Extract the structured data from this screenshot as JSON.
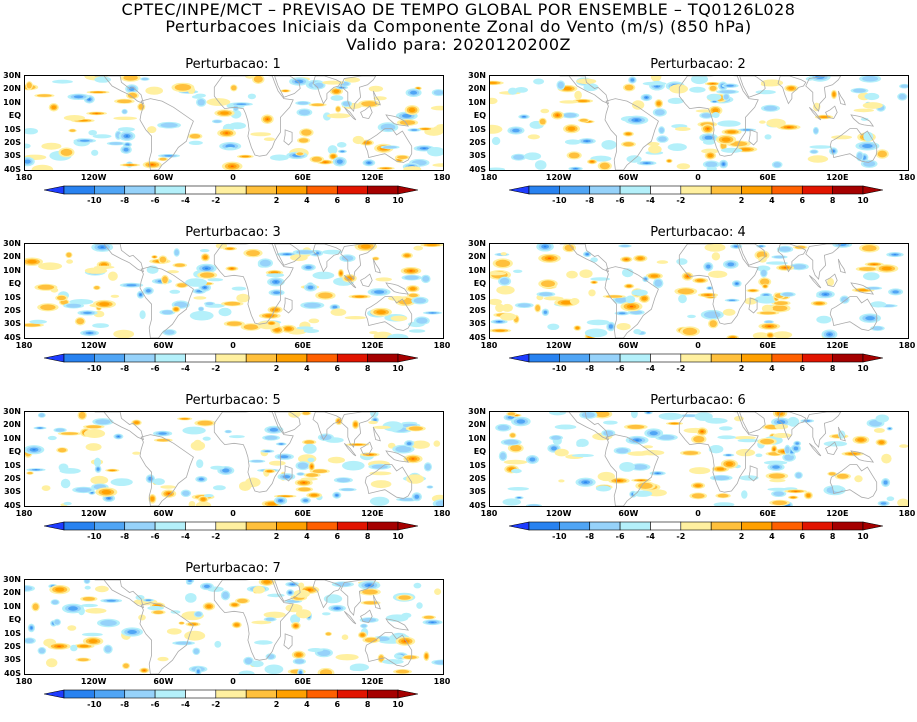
{
  "header": {
    "line1": "CPTEC/INPE/MCT – PREVISAO DE TEMPO GLOBAL POR ENSEMBLE – TQ0126L028",
    "line2": "Perturbacoes Iniciais da Componente Zonal do Vento (m/s) (850 hPa)",
    "line3": "Valido para: 2020120200Z"
  },
  "panels": [
    {
      "title": "Perturbacao: 1"
    },
    {
      "title": "Perturbacao: 2"
    },
    {
      "title": "Perturbacao: 3"
    },
    {
      "title": "Perturbacao: 4"
    },
    {
      "title": "Perturbacao: 5"
    },
    {
      "title": "Perturbacao: 6"
    },
    {
      "title": "Perturbacao: 7"
    }
  ],
  "lat_labels": [
    "30N",
    "20N",
    "10N",
    "EQ",
    "10S",
    "20S",
    "30S",
    "40S"
  ],
  "lon_labels": [
    "180",
    "120W",
    "60W",
    "0",
    "60E",
    "120E",
    "180"
  ],
  "colorbar": {
    "labels": [
      "-10",
      "-8",
      "-6",
      "-4",
      "-2",
      "2",
      "4",
      "6",
      "8",
      "10"
    ],
    "colors": [
      "#1e3cff",
      "#2882f0",
      "#50a5f5",
      "#96d2fa",
      "#b4f0fa",
      "#ffffff",
      "#fff0a0",
      "#ffc03c",
      "#ffa000",
      "#ff6000",
      "#e11400",
      "#a50000"
    ]
  },
  "map_colors": {
    "land_outline": "#aaaaaa",
    "frame": "#000000"
  }
}
